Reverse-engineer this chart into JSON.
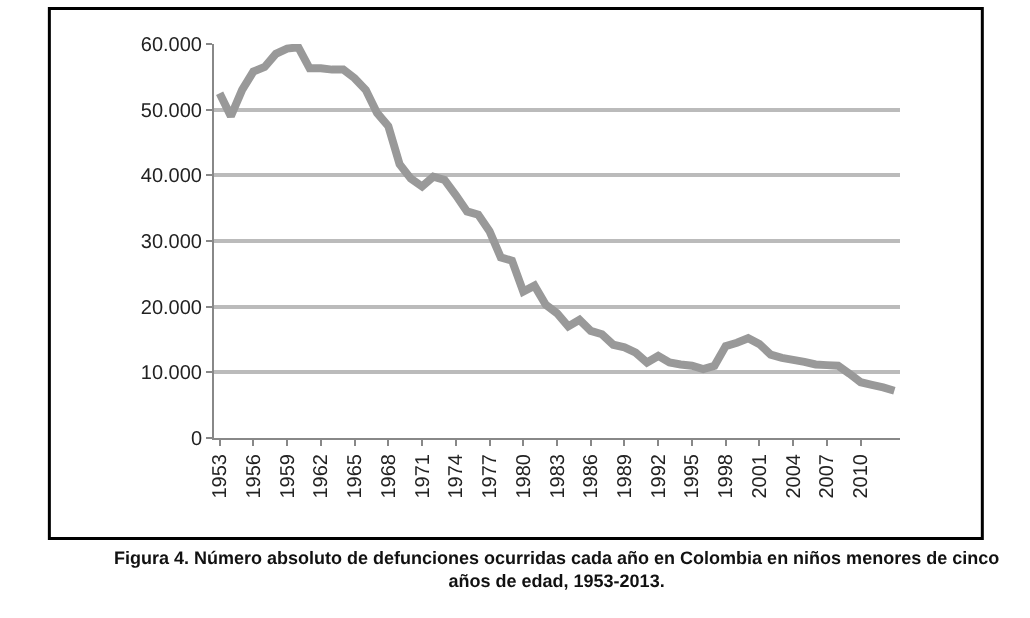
{
  "chart_data": {
    "type": "line",
    "x": [
      1953,
      1954,
      1955,
      1956,
      1957,
      1958,
      1959,
      1960,
      1961,
      1962,
      1963,
      1964,
      1965,
      1966,
      1967,
      1968,
      1969,
      1970,
      1971,
      1972,
      1973,
      1974,
      1975,
      1976,
      1977,
      1978,
      1979,
      1980,
      1981,
      1982,
      1983,
      1984,
      1985,
      1986,
      1987,
      1988,
      1989,
      1990,
      1991,
      1992,
      1993,
      1994,
      1995,
      1996,
      1997,
      1998,
      1999,
      2000,
      2001,
      2002,
      2003,
      2004,
      2005,
      2006,
      2007,
      2008,
      2009,
      2010,
      2011,
      2012,
      2013
    ],
    "series": [
      {
        "color": "#999999",
        "values": [
          52500,
          49000,
          53000,
          55800,
          56500,
          58500,
          59300,
          59500,
          56300,
          56300,
          56100,
          56100,
          54800,
          53000,
          49500,
          47500,
          41700,
          39500,
          38300,
          39800,
          39300,
          37000,
          34500,
          34000,
          31500,
          27500,
          27000,
          22300,
          23200,
          20300,
          19000,
          17000,
          18000,
          16300,
          15800,
          14200,
          13800,
          13000,
          11500,
          12500,
          11500,
          11200,
          11000,
          10500,
          11000,
          14000,
          14500,
          15200,
          14300,
          12700,
          12200,
          11900,
          11600,
          11200,
          11100,
          11000,
          9800,
          8500,
          8100,
          7700,
          7200
        ]
      }
    ],
    "xlim": [
      1952.5,
      2013.5
    ],
    "xticks": [
      1953,
      1956,
      1959,
      1962,
      1965,
      1968,
      1971,
      1974,
      1977,
      1980,
      1983,
      1986,
      1989,
      1992,
      1995,
      1998,
      2001,
      2004,
      2007,
      2010
    ],
    "ylim": [
      0,
      60000
    ],
    "yticks": [
      {
        "value": 0,
        "label": "0"
      },
      {
        "value": 10000,
        "label": "10.000"
      },
      {
        "value": 20000,
        "label": "20.000"
      },
      {
        "value": 30000,
        "label": "30.000"
      },
      {
        "value": 40000,
        "label": "40.000"
      },
      {
        "value": 50000,
        "label": "50.000"
      },
      {
        "value": 60000,
        "label": "60.000"
      }
    ],
    "grid": "y",
    "marker": "none",
    "line_style": "solid",
    "annotations": [
      "Figura 4. Número absoluto de defunciones ocurridas cada año en Colombia en niños menores de cinco años de edad, 1953-2013."
    ]
  }
}
